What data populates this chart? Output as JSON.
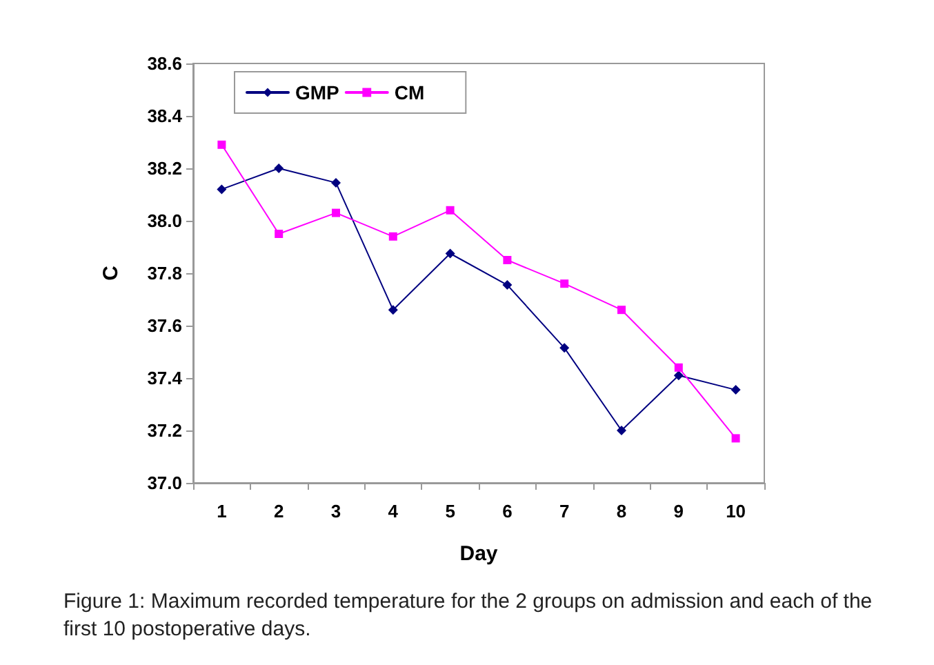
{
  "chart_data": {
    "type": "line",
    "categories": [
      "1",
      "2",
      "3",
      "4",
      "5",
      "6",
      "7",
      "8",
      "9",
      "10"
    ],
    "series": [
      {
        "name": "GMP",
        "color": "#000080",
        "marker": "diamond",
        "values": [
          38.12,
          38.2,
          38.145,
          37.66,
          37.875,
          37.755,
          37.515,
          37.2,
          37.41,
          37.355
        ]
      },
      {
        "name": "CM",
        "color": "#ff00ff",
        "marker": "square",
        "values": [
          38.29,
          37.95,
          38.03,
          37.94,
          38.04,
          37.85,
          37.76,
          37.66,
          37.44,
          37.17
        ]
      }
    ],
    "xlabel": "Day",
    "ylabel": "C",
    "ylim": [
      37.0,
      38.6
    ],
    "yticks": [
      {
        "value": 37.0,
        "label": "37.0"
      },
      {
        "value": 37.2,
        "label": "37.2"
      },
      {
        "value": 37.4,
        "label": "37.4"
      },
      {
        "value": 37.6,
        "label": "37.6"
      },
      {
        "value": 37.8,
        "label": "37.8"
      },
      {
        "value": 38.0,
        "label": "38.0"
      },
      {
        "value": 38.2,
        "label": "38.2"
      },
      {
        "value": 38.4,
        "label": "38.4"
      },
      {
        "value": 38.6,
        "label": "38.6"
      }
    ],
    "grid": false,
    "legend": "top left",
    "line_style": "solid",
    "annotations": [
      "Figure 1: Maximum recorded temperature for the 2 groups on admission and each of the first 10 postoperative days."
    ]
  }
}
